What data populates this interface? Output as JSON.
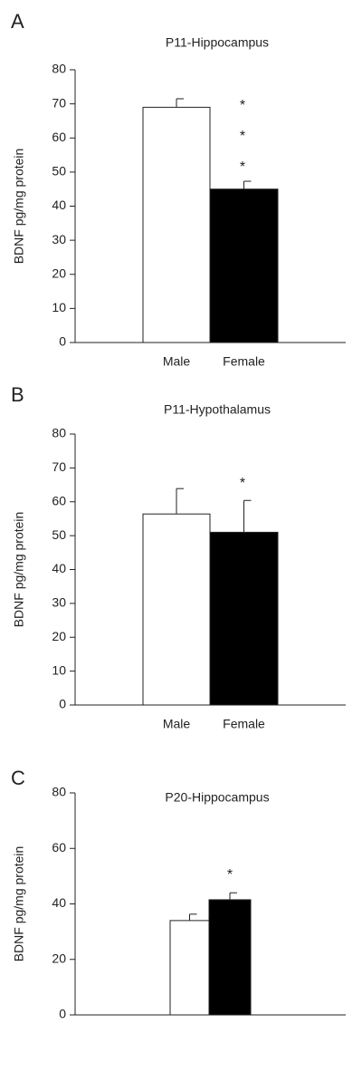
{
  "chart_data": [
    {
      "type": "bar",
      "panel": "A",
      "title": "P11-Hippocampus",
      "ylabel": "BDNF pg/mg protein",
      "categories": [
        "Male",
        "Female"
      ],
      "values": [
        69,
        45
      ],
      "errors": [
        2.5,
        2.3
      ],
      "colors": [
        "#ffffff",
        "#000000"
      ],
      "ylim": [
        0,
        80
      ],
      "yticks": [
        0,
        10,
        20,
        30,
        40,
        50,
        60,
        70,
        80
      ],
      "annotations": [
        "*",
        "*",
        "*"
      ]
    },
    {
      "type": "bar",
      "panel": "B",
      "title": "P11-Hypothalamus",
      "ylabel": "BDNF pg/mg protein",
      "categories": [
        "Male",
        "Female"
      ],
      "values": [
        56.4,
        51
      ],
      "errors": [
        7.5,
        9.4
      ],
      "colors": [
        "#ffffff",
        "#000000"
      ],
      "ylim": [
        0,
        80
      ],
      "yticks": [
        0,
        10,
        20,
        30,
        40,
        50,
        60,
        70,
        80
      ],
      "annotations": [
        "*"
      ]
    },
    {
      "type": "bar",
      "panel": "C",
      "title": "P20-Hippocampus",
      "ylabel": "BDNF pg/mg protein",
      "categories": [
        null,
        null
      ],
      "values": [
        34,
        41.5
      ],
      "errors": [
        2.3,
        2.5
      ],
      "colors": [
        "#ffffff",
        "#000000"
      ],
      "ylim": [
        0,
        80
      ],
      "yticks": [
        0,
        20,
        40,
        60,
        80
      ],
      "annotations": [
        "*"
      ]
    }
  ]
}
